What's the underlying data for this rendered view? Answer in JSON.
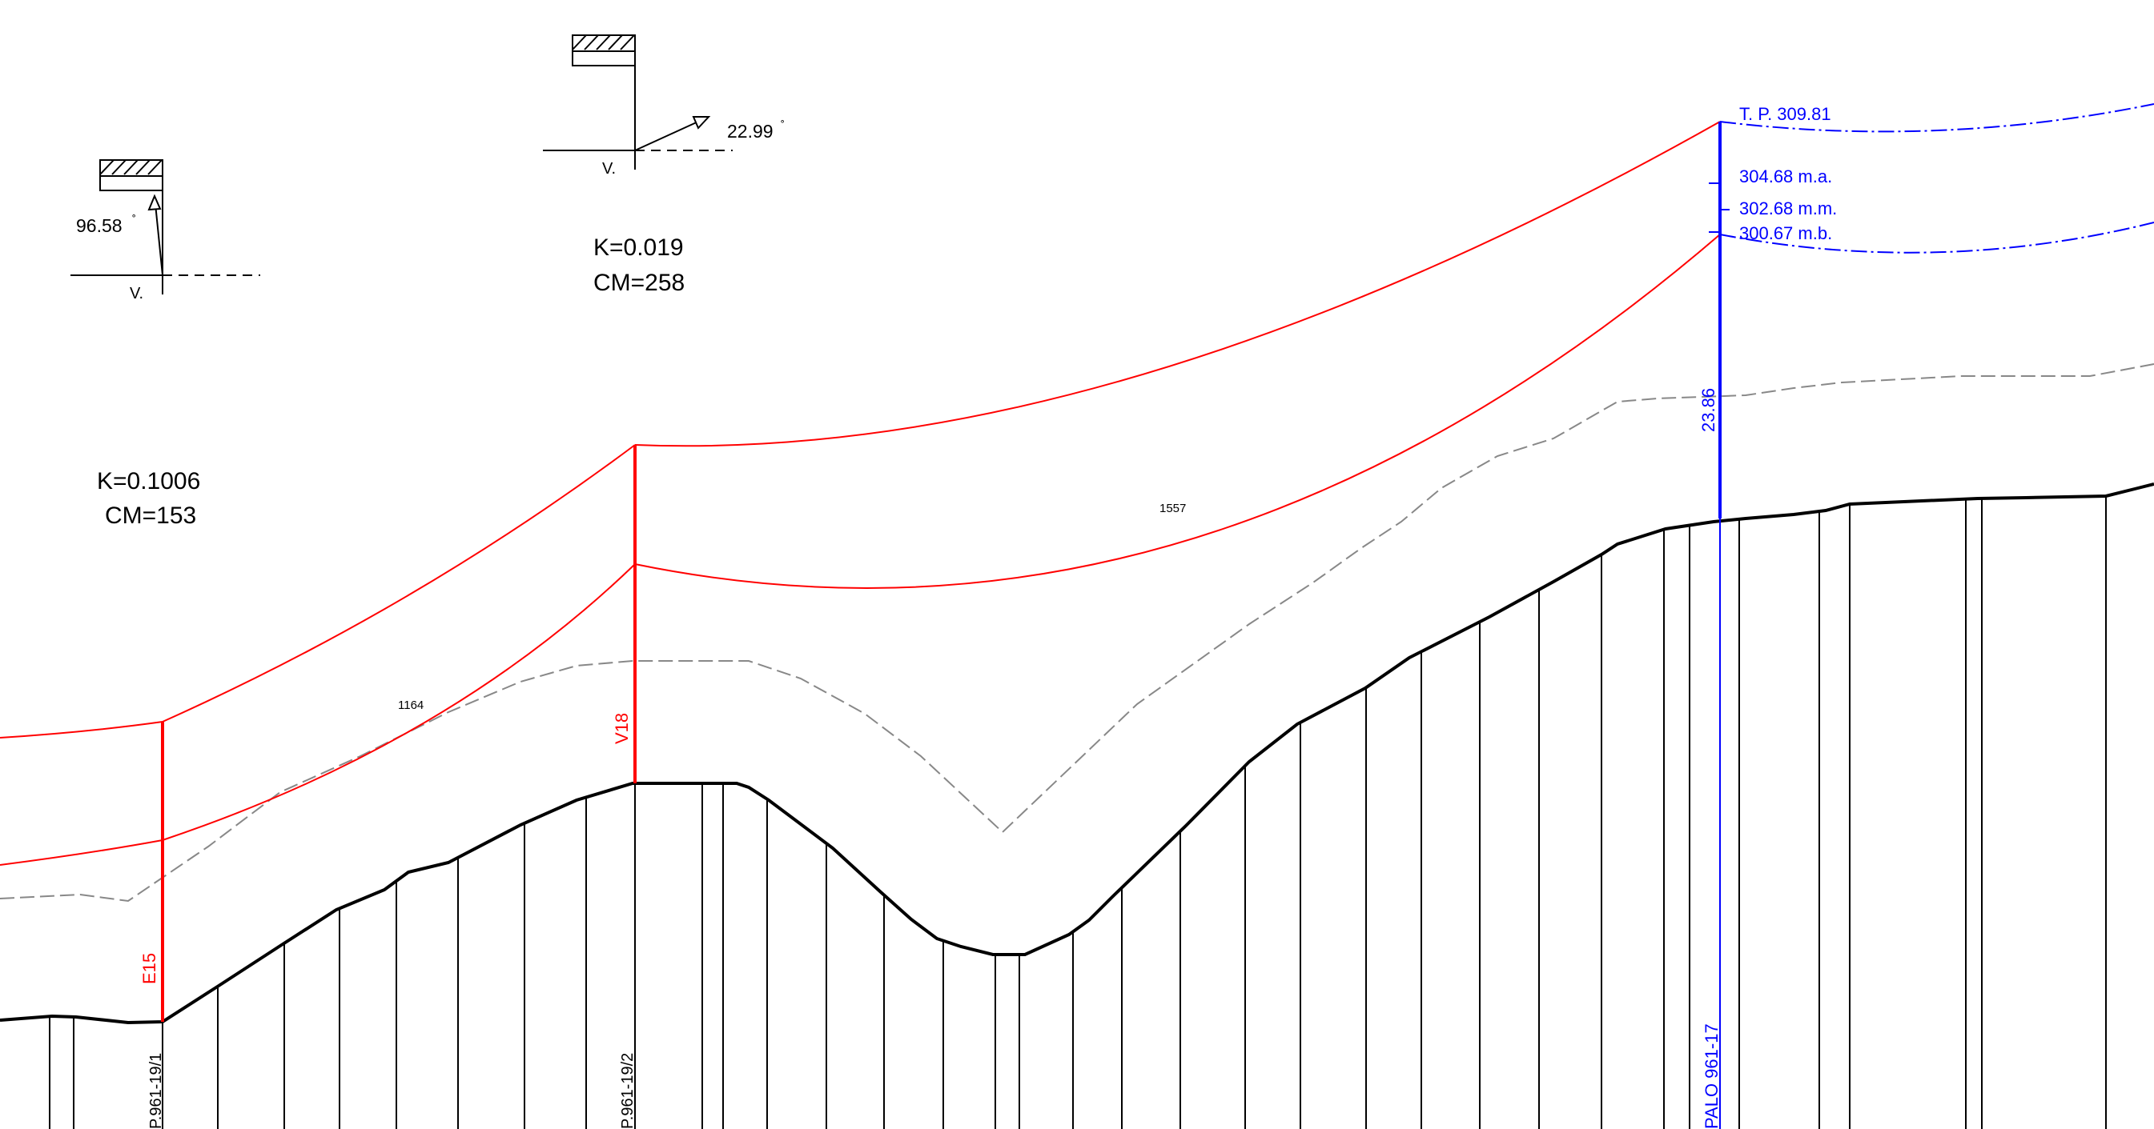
{
  "colors": {
    "conductor": "#ff0000",
    "terrain": "#000000",
    "clearance": "#888888",
    "level": "#0000ff"
  },
  "angle_left": {
    "value": "96.58",
    "v_label": "V."
  },
  "angle_mid": {
    "value": "22.99",
    "v_label": "V."
  },
  "span_left": {
    "k": "K=0.1006",
    "cm": "CM=153",
    "length": "1164"
  },
  "span_right": {
    "k": "K=0.019",
    "cm": "CM=258",
    "length": "1557"
  },
  "structures": {
    "e15": {
      "code": "E15",
      "plate": "P.961-19/1"
    },
    "v18": {
      "code": "V18",
      "plate": "P.961-19/2"
    },
    "palo": {
      "plate": "PALO 961-17",
      "height": "23.86"
    }
  },
  "levels": {
    "tp": "T. P. 309.81",
    "ma": "304.68  m.a.",
    "mm": "302.68  m.m.",
    "mb": "300.67  m.b."
  }
}
